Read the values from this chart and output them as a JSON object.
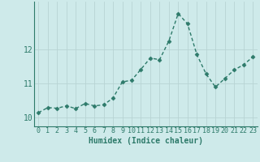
{
  "x": [
    0,
    1,
    2,
    3,
    4,
    5,
    6,
    7,
    8,
    9,
    10,
    11,
    12,
    13,
    14,
    15,
    16,
    17,
    18,
    19,
    20,
    21,
    22,
    23
  ],
  "y": [
    10.15,
    10.3,
    10.28,
    10.35,
    10.27,
    10.42,
    10.35,
    10.38,
    10.58,
    11.05,
    11.1,
    11.42,
    11.75,
    11.7,
    12.25,
    13.05,
    12.75,
    11.85,
    11.28,
    10.9,
    11.15,
    11.4,
    11.55,
    11.78
  ],
  "line_color": "#2d7a6a",
  "marker": "D",
  "marker_size": 2.5,
  "bg_color": "#ceeaea",
  "grid_color": "#b8d4d4",
  "axis_color": "#2d7a6a",
  "xlabel": "Humidex (Indice chaleur)",
  "xlim": [
    -0.5,
    23.5
  ],
  "ylim": [
    9.75,
    13.4
  ],
  "yticks": [
    10,
    11,
    12
  ],
  "xticks": [
    0,
    1,
    2,
    3,
    4,
    5,
    6,
    7,
    8,
    9,
    10,
    11,
    12,
    13,
    14,
    15,
    16,
    17,
    18,
    19,
    20,
    21,
    22,
    23
  ],
  "font_color": "#2d7a6a",
  "linewidth": 1.0,
  "tick_fontsize": 6.0,
  "xlabel_fontsize": 7.0
}
